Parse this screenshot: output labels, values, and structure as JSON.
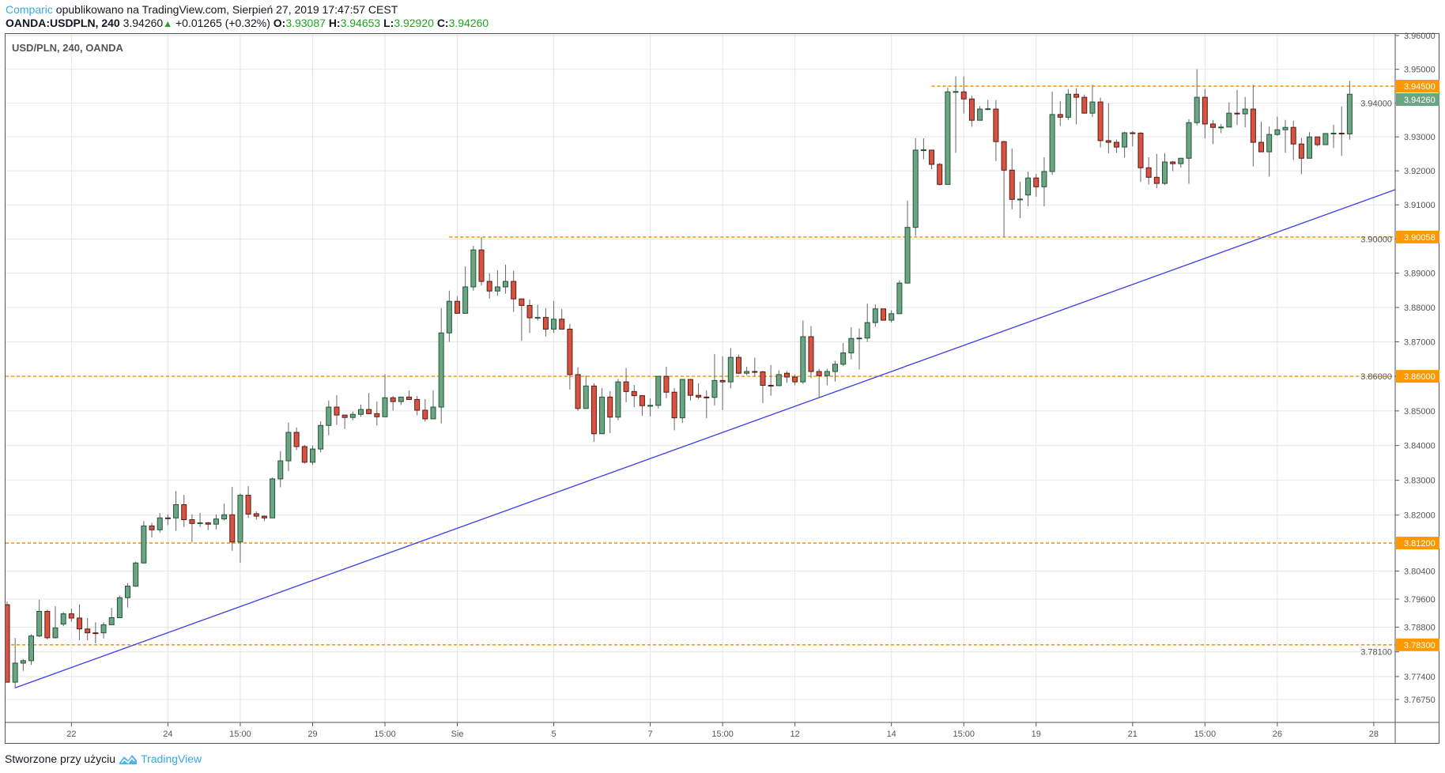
{
  "header": {
    "author": "Comparic",
    "published_text": "opublikowano na TradingView.com, Sierpień 27, 2019 17:47:57 CEST",
    "symbol": "OANDA:USDPLN, 240",
    "last": "3.94260",
    "change": "+0.01265 (+0.32%)",
    "o_label": "O:",
    "o_value": "3.93087",
    "h_label": "H:",
    "h_value": "3.94653",
    "l_label": "L:",
    "l_value": "3.92920",
    "c_label": "C:",
    "c_value": "3.94260"
  },
  "footer": {
    "text": "Stworzone przy użyciu",
    "brand": "TradingView"
  },
  "colors": {
    "up": "#6ba583",
    "up_border": "#225437",
    "down": "#d75442",
    "down_border": "#5b1a13",
    "level": "#ff9800",
    "trend": "#3a3af0",
    "last_price": "#6ba583"
  },
  "chart_data": {
    "type": "candlestick",
    "title": "USD/PLN, 240, OANDA",
    "interval": "240",
    "yscale": "log",
    "ylim": [
      3.7675,
      3.96
    ],
    "grid": true,
    "y_ticks": [
      "3.96000",
      "3.95000",
      "3.94000",
      "3.93000",
      "3.92000",
      "3.91000",
      "3.90000",
      "3.89000",
      "3.88000",
      "3.87000",
      "3.86000",
      "3.85000",
      "3.84000",
      "3.83000",
      "3.82000",
      "3.80400",
      "3.79600",
      "3.78800",
      "3.78100",
      "3.77400",
      "3.76750"
    ],
    "x_ticks": [
      {
        "label": "22",
        "at": 8
      },
      {
        "label": "24",
        "at": 20
      },
      {
        "label": "15:00",
        "at": 29
      },
      {
        "label": "29",
        "at": 38
      },
      {
        "label": "15:00",
        "at": 47
      },
      {
        "label": "Sie",
        "at": 56
      },
      {
        "label": "5",
        "at": 68
      },
      {
        "label": "7",
        "at": 80
      },
      {
        "label": "15:00",
        "at": 89
      },
      {
        "label": "12",
        "at": 98
      },
      {
        "label": "14",
        "at": 110
      },
      {
        "label": "15:00",
        "at": 119
      },
      {
        "label": "19",
        "at": 128
      },
      {
        "label": "21",
        "at": 140
      },
      {
        "label": "15:00",
        "at": 149
      },
      {
        "label": "26",
        "at": 158
      },
      {
        "label": "28",
        "at": 170
      }
    ],
    "levels": [
      {
        "price": 3.945,
        "label": "3.94500",
        "from": 115
      },
      {
        "price": 3.90058,
        "label": "3.90058",
        "from": 55
      },
      {
        "price": 3.86,
        "label": "3.86000",
        "from": 0
      },
      {
        "price": 3.812,
        "label": "3.81200",
        "from": 0
      },
      {
        "price": 3.783,
        "label": "3.78300",
        "from": 0
      }
    ],
    "last_price": {
      "price": 3.9426,
      "label": "3.94260"
    },
    "trendline": {
      "from": [
        1,
        3.7708
      ],
      "to": [
        172.7,
        3.9145
      ]
    },
    "ohlc": [
      [
        3.7944,
        3.7953,
        3.7724,
        3.7724
      ],
      [
        3.7724,
        3.7849,
        3.7708,
        3.7778
      ],
      [
        3.7778,
        3.779,
        3.7756,
        3.7785
      ],
      [
        3.7785,
        3.786,
        3.7773,
        3.7855
      ],
      [
        3.7855,
        3.7958,
        3.7852,
        3.7925
      ],
      [
        3.7925,
        3.793,
        3.7845,
        3.785
      ],
      [
        3.785,
        3.794,
        3.7848,
        3.7878
      ],
      [
        3.7889,
        3.7923,
        3.7883,
        3.7918
      ],
      [
        3.7918,
        3.7933,
        3.7895,
        3.7906
      ],
      [
        3.7906,
        3.7945,
        3.7843,
        3.7875
      ],
      [
        3.7875,
        3.7906,
        3.7843,
        3.7864
      ],
      [
        3.7864,
        3.7894,
        3.7834,
        3.7863
      ],
      [
        3.7864,
        3.7894,
        3.7848,
        3.7887
      ],
      [
        3.7887,
        3.7935,
        3.7887,
        3.7907
      ],
      [
        3.7907,
        3.797,
        3.7907,
        3.7964
      ],
      [
        3.7964,
        3.8005,
        3.7936,
        3.7997
      ],
      [
        3.7997,
        3.8067,
        3.7995,
        3.8063
      ],
      [
        3.8063,
        3.8183,
        3.8063,
        3.8169
      ],
      [
        3.8169,
        3.8178,
        3.8136,
        3.8158
      ],
      [
        3.8158,
        3.8206,
        3.815,
        3.8192
      ],
      [
        3.8192,
        3.8202,
        3.8171,
        3.8191
      ],
      [
        3.8192,
        3.8269,
        3.8155,
        3.823
      ],
      [
        3.823,
        3.8258,
        3.8166,
        3.8187
      ],
      [
        3.8187,
        3.8202,
        3.8122,
        3.8176
      ],
      [
        3.8176,
        3.8206,
        3.8166,
        3.8178
      ],
      [
        3.8178,
        3.818,
        3.8157,
        3.8174
      ],
      [
        3.8174,
        3.8202,
        3.8159,
        3.8189
      ],
      [
        3.8189,
        3.8233,
        3.8185,
        3.8201
      ],
      [
        3.8201,
        3.8281,
        3.8098,
        3.8123
      ],
      [
        3.8123,
        3.8262,
        3.8064,
        3.8257
      ],
      [
        3.8257,
        3.8283,
        3.8192,
        3.8203
      ],
      [
        3.8204,
        3.8211,
        3.8187,
        3.8197
      ],
      [
        3.8197,
        3.8199,
        3.8183,
        3.8192
      ],
      [
        3.8192,
        3.8308,
        3.8192,
        3.8304
      ],
      [
        3.8304,
        3.8384,
        3.828,
        3.8356
      ],
      [
        3.8356,
        3.8466,
        3.8326,
        3.8438
      ],
      [
        3.8438,
        3.8452,
        3.8387,
        3.8397
      ],
      [
        3.8397,
        3.8402,
        3.8348,
        3.8352
      ],
      [
        3.8352,
        3.84,
        3.8344,
        3.839
      ],
      [
        3.839,
        3.847,
        3.838,
        3.8458
      ],
      [
        3.8458,
        3.853,
        3.843,
        3.8511
      ],
      [
        3.8511,
        3.8545,
        3.846,
        3.8488
      ],
      [
        3.8488,
        3.8488,
        3.8448,
        3.8481
      ],
      [
        3.8481,
        3.8498,
        3.8473,
        3.849
      ],
      [
        3.849,
        3.8518,
        3.8483,
        3.8504
      ],
      [
        3.8504,
        3.8552,
        3.849,
        3.8492
      ],
      [
        3.8492,
        3.8527,
        3.8458,
        3.8483
      ],
      [
        3.8483,
        3.8606,
        3.8483,
        3.8538
      ],
      [
        3.8538,
        3.8543,
        3.8501,
        3.8527
      ],
      [
        3.8527,
        3.854,
        3.8517,
        3.854
      ],
      [
        3.854,
        3.8559,
        3.8533,
        3.8533
      ],
      [
        3.8533,
        3.8543,
        3.8487,
        3.8502
      ],
      [
        3.8502,
        3.8534,
        3.8469,
        3.8477
      ],
      [
        3.8477,
        3.8559,
        3.8477,
        3.8511
      ],
      [
        3.8511,
        3.8798,
        3.8464,
        3.8726
      ],
      [
        3.8726,
        3.8849,
        3.87,
        3.8818
      ],
      [
        3.8818,
        3.8832,
        3.8783,
        3.8783
      ],
      [
        3.8783,
        3.892,
        3.8783,
        3.886
      ],
      [
        3.886,
        3.898,
        3.8849,
        3.8968
      ],
      [
        3.8968,
        3.9005,
        3.8864,
        3.8876
      ],
      [
        3.8876,
        3.89,
        3.8826,
        3.8848
      ],
      [
        3.8848,
        3.8909,
        3.8834,
        3.886
      ],
      [
        3.886,
        3.8925,
        3.884,
        3.8876
      ],
      [
        3.8876,
        3.8907,
        3.8787,
        3.8825
      ],
      [
        3.8825,
        3.8825,
        3.8703,
        3.8806
      ],
      [
        3.8806,
        3.8823,
        3.8726,
        3.877
      ],
      [
        3.877,
        3.8808,
        3.8762,
        3.8771
      ],
      [
        3.8771,
        3.8798,
        3.8716,
        3.8737
      ],
      [
        3.8737,
        3.8819,
        3.8726,
        3.8766
      ],
      [
        3.8766,
        3.8796,
        3.8735,
        3.8737
      ],
      [
        3.8737,
        3.8752,
        3.8562,
        3.8605
      ],
      [
        3.8605,
        3.8626,
        3.85,
        3.8507
      ],
      [
        3.8507,
        3.8602,
        3.8507,
        3.8572
      ],
      [
        3.8572,
        3.858,
        3.8411,
        3.8434
      ],
      [
        3.8434,
        3.8566,
        3.8434,
        3.854
      ],
      [
        3.854,
        3.8557,
        3.8436,
        3.8482
      ],
      [
        3.8482,
        3.8592,
        3.8473,
        3.8584
      ],
      [
        3.8584,
        3.8624,
        3.8525,
        3.8556
      ],
      [
        3.8556,
        3.8575,
        3.8511,
        3.8544
      ],
      [
        3.8544,
        3.8545,
        3.8486,
        3.8515
      ],
      [
        3.8515,
        3.8536,
        3.8484,
        3.8516
      ],
      [
        3.8516,
        3.86,
        3.8507,
        3.86
      ],
      [
        3.86,
        3.8628,
        3.8537,
        3.8554
      ],
      [
        3.8554,
        3.8566,
        3.8444,
        3.848
      ],
      [
        3.848,
        3.8591,
        3.8465,
        3.8591
      ],
      [
        3.8591,
        3.8591,
        3.853,
        3.8545
      ],
      [
        3.8545,
        3.858,
        3.8534,
        3.854
      ],
      [
        3.854,
        3.8559,
        3.8479,
        3.8539
      ],
      [
        3.8539,
        3.8665,
        3.8516,
        3.8588
      ],
      [
        3.8588,
        3.8658,
        3.8502,
        3.8584
      ],
      [
        3.8584,
        3.8682,
        3.8565,
        3.8655
      ],
      [
        3.8655,
        3.8663,
        3.8607,
        3.8609
      ],
      [
        3.8609,
        3.8628,
        3.8603,
        3.8614
      ],
      [
        3.8614,
        3.8654,
        3.8599,
        3.8613
      ],
      [
        3.8613,
        3.8616,
        3.8523,
        3.8574
      ],
      [
        3.8574,
        3.8633,
        3.8544,
        3.8573
      ],
      [
        3.8573,
        3.8617,
        3.8572,
        3.8605
      ],
      [
        3.8609,
        3.8615,
        3.8581,
        3.8598
      ],
      [
        3.8598,
        3.8605,
        3.8574,
        3.8584
      ],
      [
        3.8584,
        3.8762,
        3.8578,
        3.8715
      ],
      [
        3.8715,
        3.8746,
        3.8595,
        3.8614
      ],
      [
        3.8614,
        3.8622,
        3.854,
        3.8602
      ],
      [
        3.8602,
        3.8622,
        3.8574,
        3.8614
      ],
      [
        3.8614,
        3.8645,
        3.8585,
        3.8635
      ],
      [
        3.8635,
        3.8697,
        3.863,
        3.8668
      ],
      [
        3.8668,
        3.8743,
        3.8649,
        3.871
      ],
      [
        3.871,
        3.8739,
        3.862,
        3.8711
      ],
      [
        3.8711,
        3.8811,
        3.87,
        3.8756
      ],
      [
        3.8756,
        3.8809,
        3.8744,
        3.8796
      ],
      [
        3.8796,
        3.8796,
        3.8763,
        3.8763
      ],
      [
        3.8763,
        3.8792,
        3.8756,
        3.8782
      ],
      [
        3.8782,
        3.8879,
        3.8782,
        3.8871
      ],
      [
        3.8871,
        3.9112,
        3.8871,
        3.9034
      ],
      [
        3.9034,
        3.9296,
        3.9009,
        3.9261
      ],
      [
        3.9261,
        3.9296,
        3.9234,
        3.9262
      ],
      [
        3.9261,
        3.9261,
        3.9205,
        3.9219
      ],
      [
        3.9219,
        3.9223,
        3.9157,
        3.916
      ],
      [
        3.916,
        3.9446,
        3.916,
        3.9433
      ],
      [
        3.9433,
        3.9479,
        3.9253,
        3.9434
      ],
      [
        3.9433,
        3.9479,
        3.9369,
        3.9412
      ],
      [
        3.9412,
        3.9422,
        3.933,
        3.9349
      ],
      [
        3.9349,
        3.9391,
        3.9349,
        3.9382
      ],
      [
        3.9382,
        3.9409,
        3.9379,
        3.9383
      ],
      [
        3.9382,
        3.9409,
        3.9229,
        3.9286
      ],
      [
        3.9286,
        3.9289,
        3.9006,
        3.9202
      ],
      [
        3.9202,
        3.9266,
        3.9087,
        3.9116
      ],
      [
        3.9116,
        3.9168,
        3.9061,
        3.9117
      ],
      [
        3.9129,
        3.9198,
        3.9096,
        3.9179
      ],
      [
        3.9179,
        3.9191,
        3.9124,
        3.9153
      ],
      [
        3.9153,
        3.924,
        3.9096,
        3.9198
      ],
      [
        3.9198,
        3.9434,
        3.9188,
        3.9366
      ],
      [
        3.9366,
        3.9406,
        3.9332,
        3.9358
      ],
      [
        3.9358,
        3.9441,
        3.935,
        3.9426
      ],
      [
        3.9426,
        3.9444,
        3.9337,
        3.9417
      ],
      [
        3.9417,
        3.9425,
        3.937,
        3.937
      ],
      [
        3.937,
        3.9454,
        3.9358,
        3.9403
      ],
      [
        3.9403,
        3.9416,
        3.9269,
        3.9289
      ],
      [
        3.9289,
        3.9399,
        3.9251,
        3.9284
      ],
      [
        3.9284,
        3.9292,
        3.9253,
        3.927
      ],
      [
        3.927,
        3.9315,
        3.9239,
        3.9312
      ],
      [
        3.9312,
        3.9317,
        3.9272,
        3.9311
      ],
      [
        3.9311,
        3.9314,
        3.9167,
        3.9209
      ],
      [
        3.9209,
        3.924,
        3.916,
        3.9181
      ],
      [
        3.9181,
        3.925,
        3.9149,
        3.9163
      ],
      [
        3.9163,
        3.9252,
        3.9158,
        3.9226
      ],
      [
        3.9226,
        3.9229,
        3.9199,
        3.9221
      ],
      [
        3.9221,
        3.9237,
        3.9209,
        3.9237
      ],
      [
        3.9237,
        3.9352,
        3.9162,
        3.9342
      ],
      [
        3.9342,
        3.95,
        3.9334,
        3.9417
      ],
      [
        3.9417,
        3.9441,
        3.9296,
        3.9338
      ],
      [
        3.9338,
        3.935,
        3.9279,
        3.9328
      ],
      [
        3.9328,
        3.9338,
        3.9311,
        3.9329
      ],
      [
        3.9329,
        3.9402,
        3.9329,
        3.937
      ],
      [
        3.937,
        3.9439,
        3.9335,
        3.9369
      ],
      [
        3.9368,
        3.9418,
        3.9328,
        3.9382
      ],
      [
        3.9382,
        3.9454,
        3.9213,
        3.9284
      ],
      [
        3.9284,
        3.9345,
        3.9256,
        3.9256
      ],
      [
        3.9256,
        3.9331,
        3.9183,
        3.9307
      ],
      [
        3.9307,
        3.936,
        3.9303,
        3.9321
      ],
      [
        3.9321,
        3.935,
        3.9253,
        3.9328
      ],
      [
        3.9328,
        3.9348,
        3.9232,
        3.9279
      ],
      [
        3.9279,
        3.9297,
        3.919,
        3.9237
      ],
      [
        3.9237,
        3.9314,
        3.9237,
        3.93
      ],
      [
        3.93,
        3.93,
        3.9272,
        3.9277
      ],
      [
        3.9277,
        3.931,
        3.9277,
        3.931
      ],
      [
        3.931,
        3.9336,
        3.9267,
        3.9311
      ],
      [
        3.9311,
        3.939,
        3.9244,
        3.9309
      ],
      [
        3.93087,
        3.94653,
        3.9292,
        3.9426
      ]
    ]
  }
}
